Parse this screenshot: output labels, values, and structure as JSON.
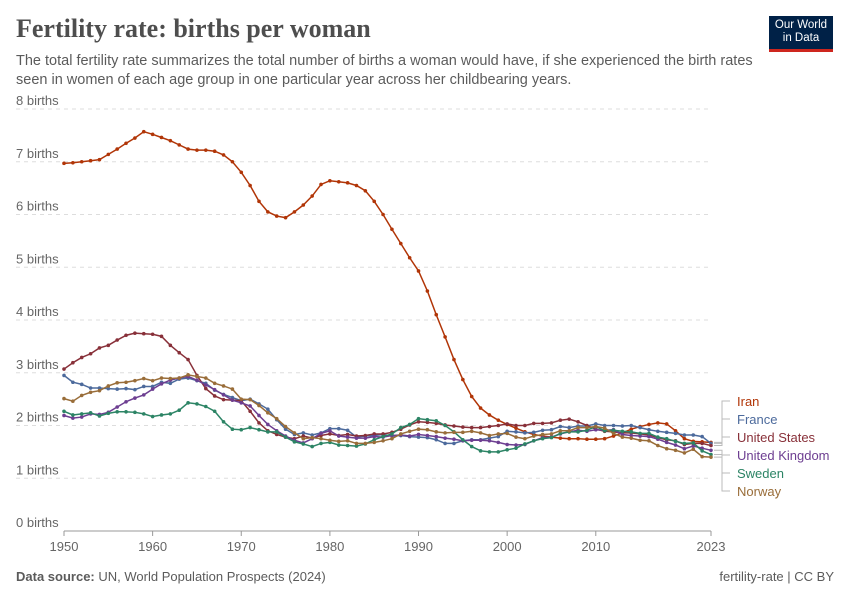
{
  "header": {
    "title": "Fertility rate: births per woman",
    "subtitle": "The total fertility rate summarizes the total number of births a woman would have, if she experienced the birth rates seen in women of each age group in one particular year across her childbearing years.",
    "logo": "Our World in Data"
  },
  "footer": {
    "source_label": "Data source:",
    "source": "UN, World Population Prospects (2024)",
    "license": "fertility-rate | CC BY"
  },
  "chart_data": {
    "type": "line",
    "title": "Fertility rate: births per woman",
    "xlim": [
      1950,
      2023
    ],
    "ylim": [
      0,
      8
    ],
    "x_ticks": [
      "1950",
      "1960",
      "1970",
      "1980",
      "1990",
      "2000",
      "2010",
      "2023"
    ],
    "x_tick_values": [
      1950,
      1960,
      1970,
      1980,
      1990,
      2000,
      2010,
      2023
    ],
    "y_ticks": [
      "0 births",
      "1 births",
      "2 births",
      "3 births",
      "4 births",
      "5 births",
      "6 births",
      "7 births",
      "8 births"
    ],
    "grid": "horizontal dashed",
    "legend": "right",
    "x_start": 1950,
    "series": [
      {
        "name": "Iran",
        "color": "#b13507",
        "values": [
          6.97,
          6.98,
          7.0,
          7.02,
          7.04,
          7.14,
          7.24,
          7.35,
          7.45,
          7.57,
          7.52,
          7.46,
          7.4,
          7.32,
          7.24,
          7.22,
          7.22,
          7.2,
          7.13,
          7.0,
          6.8,
          6.55,
          6.25,
          6.05,
          5.97,
          5.94,
          6.05,
          6.18,
          6.35,
          6.57,
          6.64,
          6.62,
          6.6,
          6.55,
          6.45,
          6.25,
          6.0,
          5.72,
          5.45,
          5.18,
          4.93,
          4.55,
          4.1,
          3.68,
          3.25,
          2.87,
          2.55,
          2.33,
          2.2,
          2.1,
          2.02,
          1.95,
          1.88,
          1.83,
          1.8,
          1.78,
          1.76,
          1.75,
          1.75,
          1.74,
          1.74,
          1.75,
          1.8,
          1.86,
          1.93,
          1.98,
          2.02,
          2.05,
          2.03,
          1.9,
          1.75,
          1.7,
          1.69,
          1.68
        ]
      },
      {
        "name": "France",
        "color": "#4c6a9c",
        "values": [
          2.95,
          2.82,
          2.78,
          2.71,
          2.71,
          2.7,
          2.69,
          2.7,
          2.68,
          2.74,
          2.74,
          2.82,
          2.8,
          2.88,
          2.9,
          2.85,
          2.8,
          2.67,
          2.59,
          2.53,
          2.47,
          2.5,
          2.41,
          2.31,
          2.11,
          1.93,
          1.83,
          1.86,
          1.82,
          1.86,
          1.94,
          1.94,
          1.91,
          1.78,
          1.8,
          1.81,
          1.83,
          1.8,
          1.81,
          1.79,
          1.78,
          1.77,
          1.73,
          1.66,
          1.66,
          1.71,
          1.73,
          1.73,
          1.76,
          1.79,
          1.89,
          1.88,
          1.86,
          1.87,
          1.91,
          1.92,
          1.98,
          1.96,
          1.99,
          1.99,
          2.03,
          2.0,
          2.0,
          1.99,
          2.0,
          1.96,
          1.92,
          1.89,
          1.87,
          1.85,
          1.82,
          1.82,
          1.79,
          1.66
        ]
      },
      {
        "name": "United States",
        "color": "#883039",
        "values": [
          3.07,
          3.19,
          3.29,
          3.36,
          3.47,
          3.52,
          3.62,
          3.71,
          3.75,
          3.74,
          3.73,
          3.69,
          3.52,
          3.38,
          3.25,
          2.95,
          2.7,
          2.56,
          2.49,
          2.48,
          2.47,
          2.27,
          2.05,
          1.9,
          1.83,
          1.78,
          1.75,
          1.8,
          1.76,
          1.81,
          1.84,
          1.81,
          1.83,
          1.8,
          1.81,
          1.84,
          1.84,
          1.87,
          1.93,
          2.01,
          2.07,
          2.06,
          2.04,
          2.01,
          1.99,
          1.97,
          1.96,
          1.96,
          1.98,
          2.0,
          2.03,
          2.0,
          2.0,
          2.04,
          2.04,
          2.05,
          2.1,
          2.12,
          2.07,
          2.0,
          1.93,
          1.89,
          1.88,
          1.86,
          1.86,
          1.84,
          1.82,
          1.77,
          1.73,
          1.71,
          1.64,
          1.66,
          1.66,
          1.62
        ]
      },
      {
        "name": "United Kingdom",
        "color": "#6d3e91",
        "values": [
          2.19,
          2.14,
          2.16,
          2.22,
          2.21,
          2.25,
          2.35,
          2.45,
          2.52,
          2.58,
          2.69,
          2.79,
          2.86,
          2.9,
          2.93,
          2.86,
          2.77,
          2.68,
          2.58,
          2.48,
          2.43,
          2.37,
          2.19,
          2.02,
          1.9,
          1.8,
          1.72,
          1.67,
          1.75,
          1.85,
          1.9,
          1.8,
          1.78,
          1.76,
          1.76,
          1.79,
          1.78,
          1.81,
          1.82,
          1.8,
          1.83,
          1.81,
          1.79,
          1.76,
          1.74,
          1.71,
          1.72,
          1.72,
          1.71,
          1.68,
          1.64,
          1.63,
          1.64,
          1.71,
          1.77,
          1.78,
          1.84,
          1.88,
          1.91,
          1.89,
          1.92,
          1.91,
          1.92,
          1.83,
          1.81,
          1.8,
          1.79,
          1.74,
          1.68,
          1.63,
          1.56,
          1.61,
          1.57,
          1.53
        ]
      },
      {
        "name": "Sweden",
        "color": "#2c8465",
        "values": [
          2.27,
          2.2,
          2.22,
          2.24,
          2.18,
          2.23,
          2.26,
          2.26,
          2.25,
          2.22,
          2.17,
          2.2,
          2.22,
          2.29,
          2.43,
          2.41,
          2.36,
          2.27,
          2.07,
          1.93,
          1.92,
          1.96,
          1.92,
          1.88,
          1.88,
          1.78,
          1.69,
          1.65,
          1.6,
          1.66,
          1.68,
          1.63,
          1.62,
          1.61,
          1.65,
          1.73,
          1.79,
          1.84,
          1.96,
          2.02,
          2.13,
          2.11,
          2.09,
          2.0,
          1.88,
          1.73,
          1.6,
          1.52,
          1.5,
          1.5,
          1.54,
          1.57,
          1.65,
          1.71,
          1.75,
          1.77,
          1.85,
          1.88,
          1.88,
          1.91,
          1.98,
          1.9,
          1.91,
          1.89,
          1.88,
          1.85,
          1.85,
          1.78,
          1.75,
          1.7,
          1.66,
          1.67,
          1.52,
          1.45
        ]
      },
      {
        "name": "Norway",
        "color": "#996d39",
        "values": [
          2.51,
          2.46,
          2.57,
          2.63,
          2.66,
          2.75,
          2.81,
          2.82,
          2.85,
          2.89,
          2.85,
          2.9,
          2.89,
          2.9,
          2.96,
          2.93,
          2.9,
          2.8,
          2.75,
          2.69,
          2.5,
          2.49,
          2.38,
          2.24,
          2.13,
          1.98,
          1.86,
          1.75,
          1.77,
          1.75,
          1.72,
          1.7,
          1.71,
          1.66,
          1.66,
          1.68,
          1.71,
          1.75,
          1.84,
          1.89,
          1.93,
          1.92,
          1.88,
          1.86,
          1.87,
          1.87,
          1.89,
          1.86,
          1.81,
          1.84,
          1.85,
          1.78,
          1.75,
          1.8,
          1.83,
          1.84,
          1.9,
          1.9,
          1.96,
          1.96,
          1.98,
          1.95,
          1.85,
          1.78,
          1.76,
          1.72,
          1.71,
          1.62,
          1.56,
          1.53,
          1.48,
          1.55,
          1.41,
          1.4
        ]
      }
    ]
  }
}
